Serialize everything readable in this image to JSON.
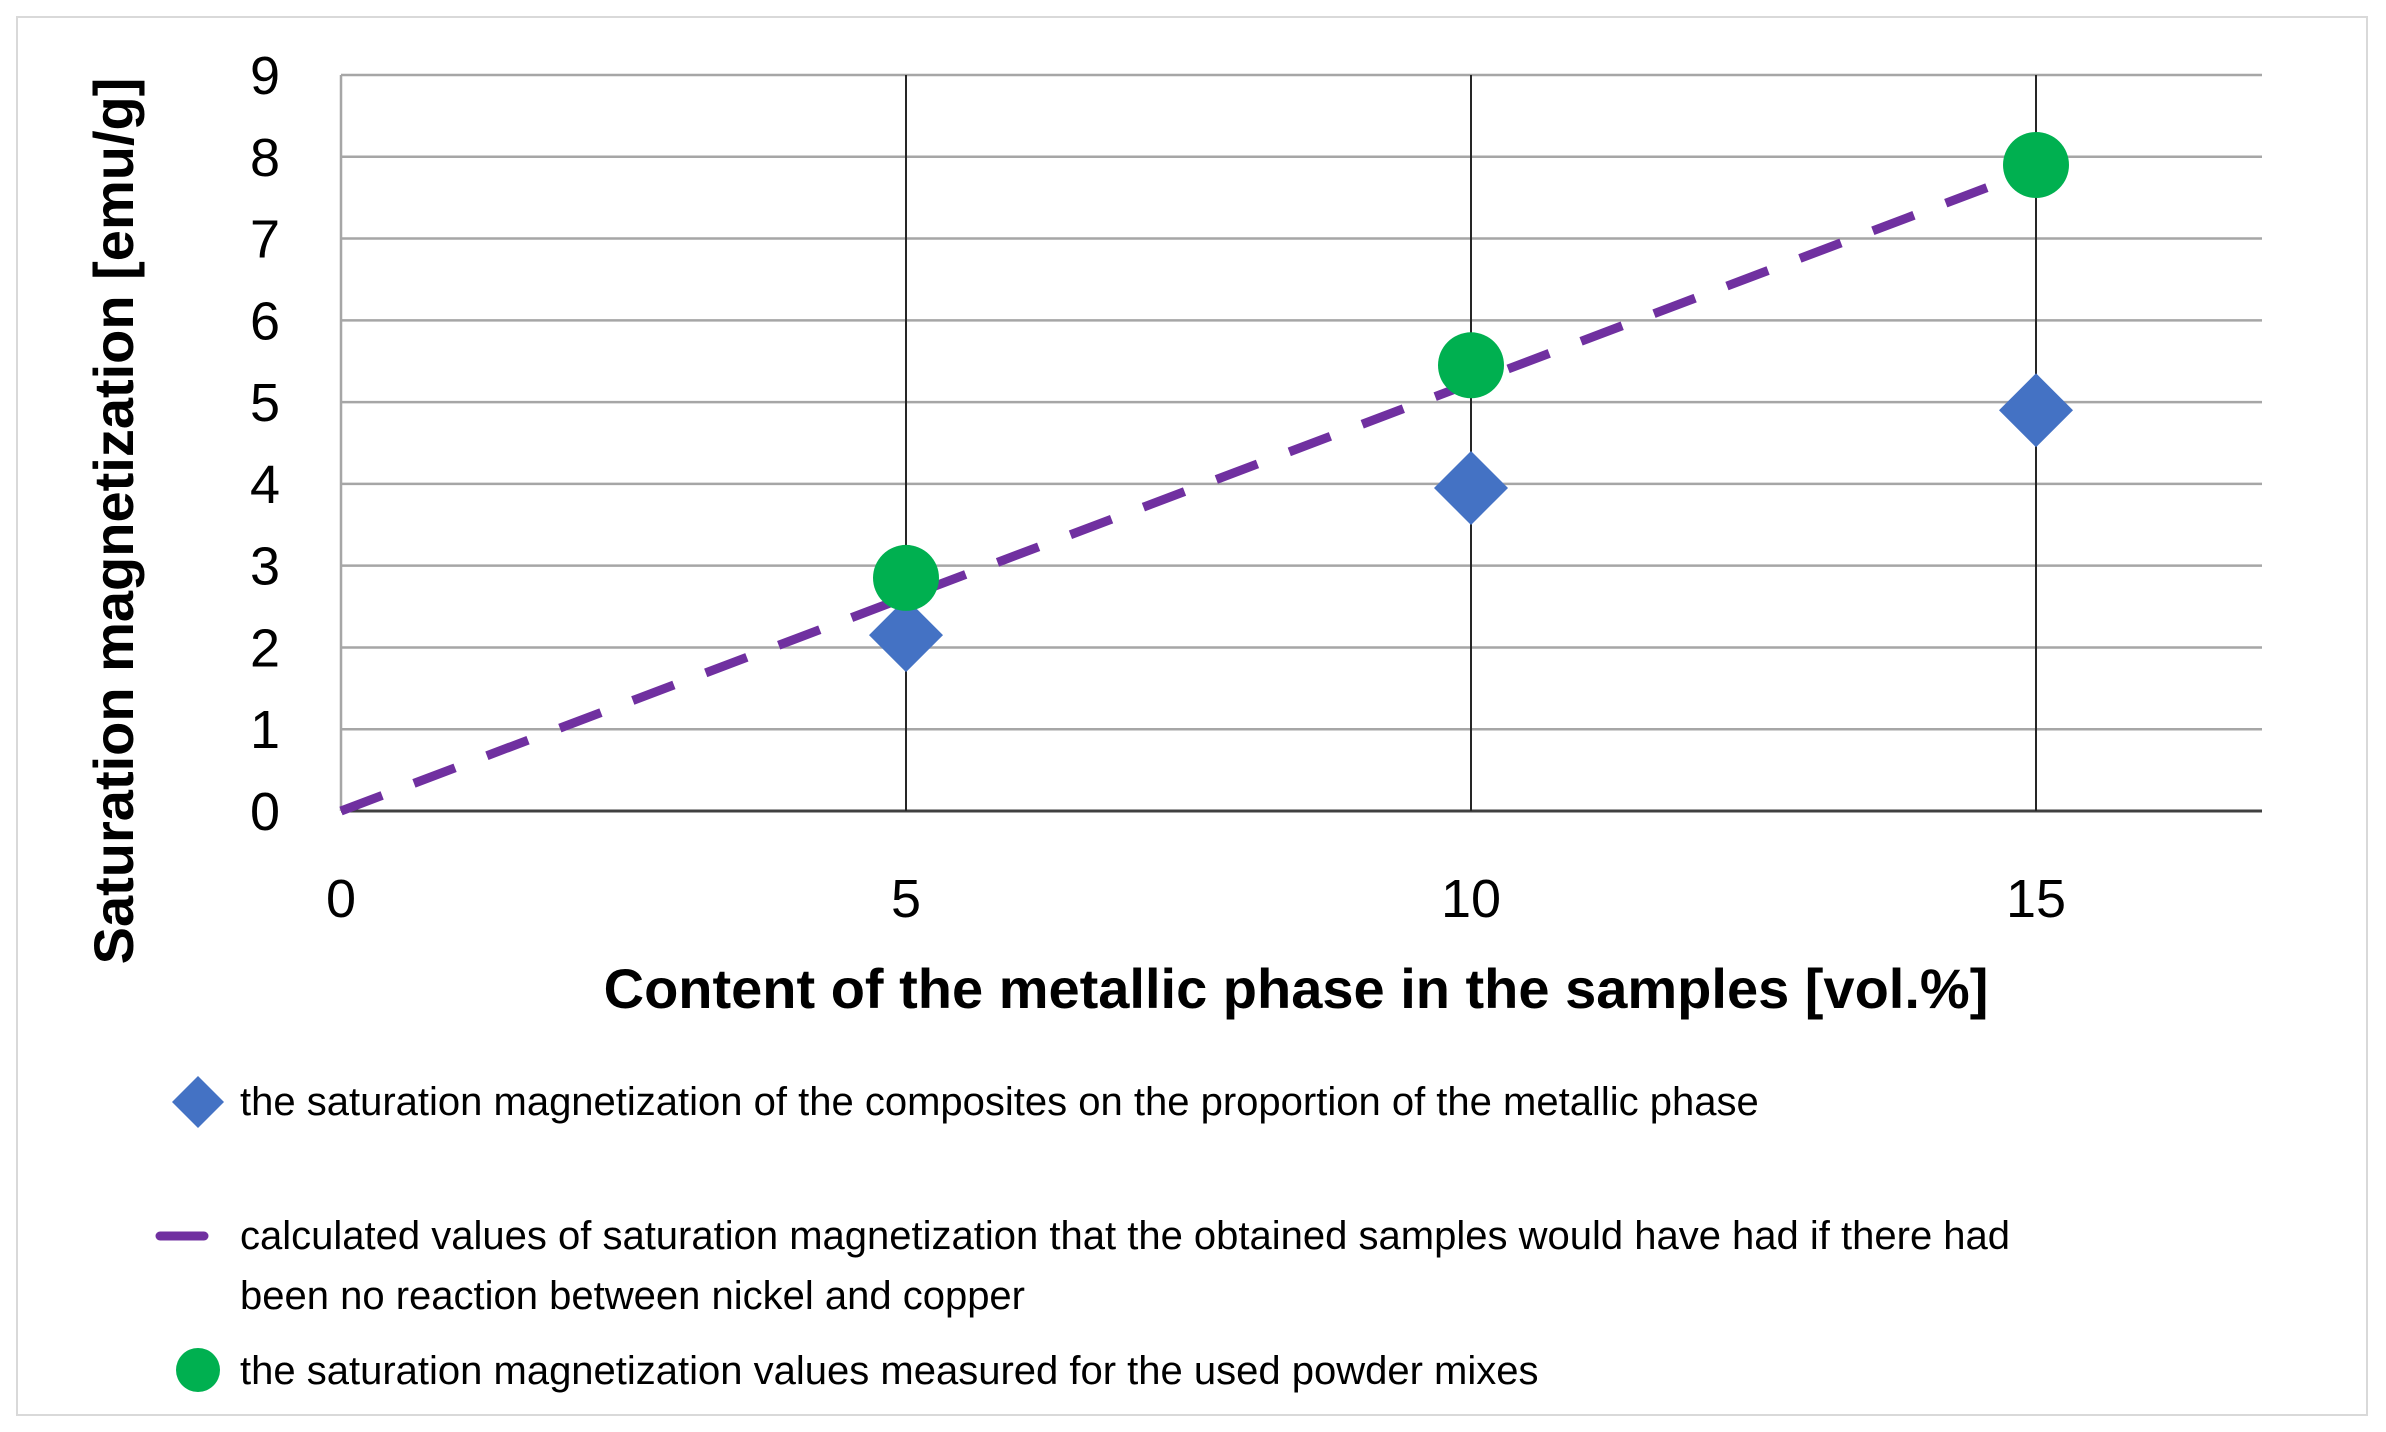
{
  "chart_data": {
    "type": "scatter",
    "xlabel": "Content of the metallic phase in the samples [vol.%]",
    "ylabel": "Saturation magnetization [emu/g]",
    "xlim": [
      0,
      17
    ],
    "ylim": [
      0,
      9
    ],
    "x_ticks": [
      0,
      5,
      10,
      15
    ],
    "y_ticks": [
      0,
      1,
      2,
      3,
      4,
      5,
      6,
      7,
      8,
      9
    ],
    "grid": true,
    "legend_position": "bottom",
    "series": [
      {
        "key": "composites",
        "marker": "diamond",
        "color": "#4472c4",
        "x": [
          5,
          10,
          15
        ],
        "y": [
          2.15,
          3.95,
          4.9
        ],
        "legend_label": "the saturation magnetization of the composites on the proportion of the metallic phase"
      },
      {
        "key": "calculated",
        "marker": "dashed-line",
        "color": "#7030a0",
        "x": [
          0,
          15
        ],
        "y": [
          0,
          7.85
        ],
        "legend_label_lines": [
          "calculated values of saturation magnetization that the obtained samples would have had if there had",
          "been no reaction between nickel and copper"
        ]
      },
      {
        "key": "powder",
        "marker": "circle",
        "color": "#00b050",
        "x": [
          5,
          10,
          15
        ],
        "y": [
          2.85,
          5.45,
          7.9
        ],
        "legend_label": "the saturation magnetization values measured for the used powder mixes"
      }
    ]
  }
}
